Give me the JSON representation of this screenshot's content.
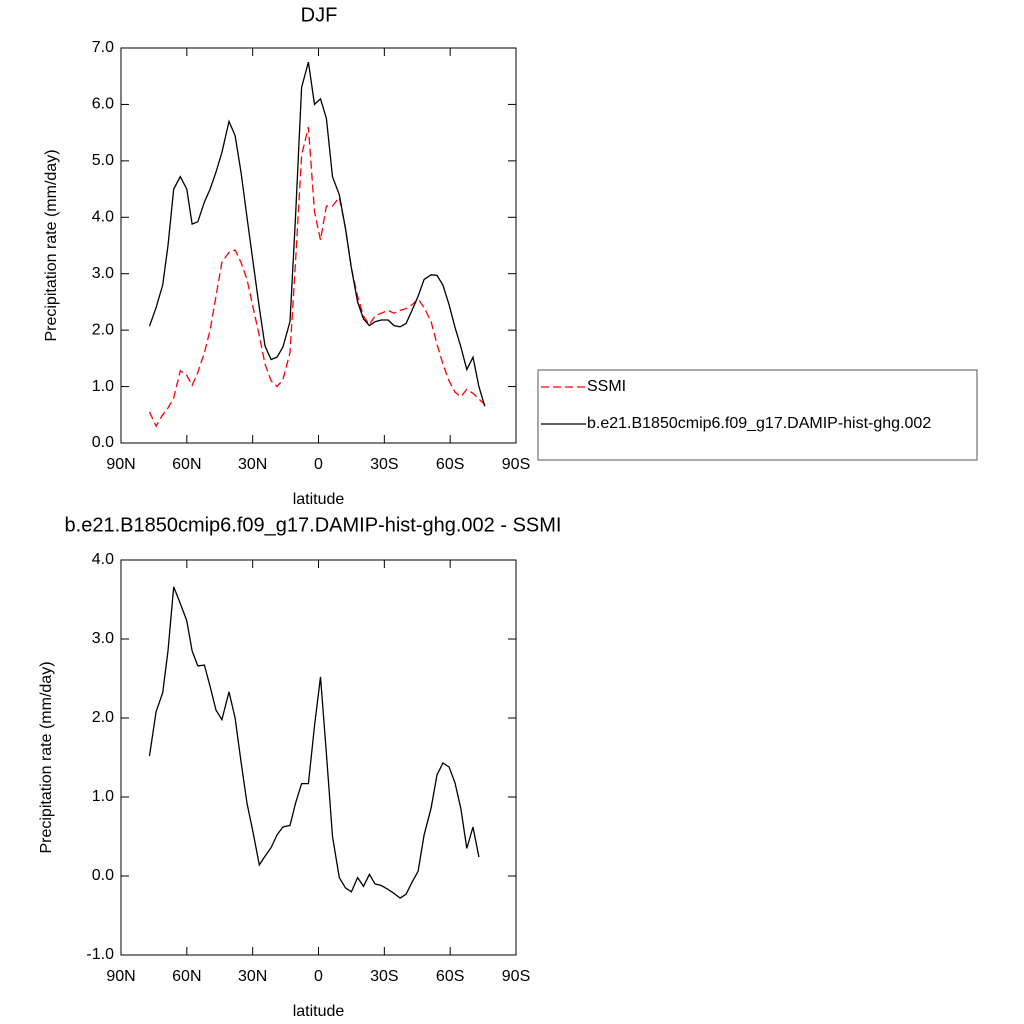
{
  "chart_data": [
    {
      "type": "line",
      "title": "DJF",
      "xlabel": "latitude",
      "ylabel": "Precipitation rate (mm/day)",
      "xlim": [
        90,
        -90
      ],
      "xticks": [
        {
          "value": 90,
          "label": "90N"
        },
        {
          "value": 60,
          "label": "60N"
        },
        {
          "value": 30,
          "label": "30N"
        },
        0,
        {
          "value": -30,
          "label": "30S"
        },
        {
          "value": -60,
          "label": "60S"
        },
        {
          "value": -90,
          "label": "90S"
        }
      ],
      "ylim": [
        0,
        7
      ],
      "yticks": [
        {
          "value": 0,
          "label": "0.0"
        },
        {
          "value": 1,
          "label": "1.0"
        },
        {
          "value": 2,
          "label": "2.0"
        },
        {
          "value": 3,
          "label": "3.0"
        },
        {
          "value": 4,
          "label": "4.0"
        },
        {
          "value": 5,
          "label": "5.0"
        },
        {
          "value": 6,
          "label": "6.0"
        },
        {
          "value": 7,
          "label": "7.0"
        }
      ],
      "legend": "right",
      "x": [
        77,
        74,
        71,
        68.6,
        66,
        63,
        60,
        57.6,
        55,
        52,
        49.4,
        46.7,
        44,
        40.8,
        38,
        35.3,
        32.6,
        29.8,
        27,
        24.4,
        21.6,
        18.9,
        16.2,
        13,
        10.5,
        7.7,
        4.6,
        1.8,
        -0.9,
        -3.6,
        -6.4,
        -9.5,
        -12.3,
        -15,
        -17.8,
        -20.5,
        -23.2,
        -25.8,
        -28.6,
        -31.7,
        -34.4,
        -37.2,
        -39.9,
        -42.6,
        -45.4,
        -48.1,
        -51.3,
        -54,
        -56.7,
        -59.5,
        -62.2,
        -64.9,
        -67.6,
        -70.4,
        -73.1,
        -75.8
      ],
      "series": [
        {
          "name": "SSMI",
          "color": "#ff0000",
          "line_style": "dashed",
          "values": [
            0.55,
            0.3,
            0.5,
            0.62,
            0.8,
            1.28,
            1.2,
            1.02,
            1.25,
            1.6,
            2.0,
            2.6,
            3.2,
            3.38,
            3.42,
            3.2,
            2.9,
            2.4,
            1.9,
            1.4,
            1.1,
            1.0,
            1.12,
            1.6,
            3.2,
            5.1,
            5.6,
            4.1,
            3.6,
            4.2,
            4.2,
            4.35,
            3.8,
            3.1,
            2.6,
            2.25,
            2.1,
            2.25,
            2.3,
            2.35,
            2.3,
            2.35,
            2.38,
            2.45,
            2.55,
            2.4,
            2.15,
            1.75,
            1.4,
            1.1,
            0.9,
            0.82,
            0.95,
            0.88,
            0.78,
            0.68
          ]
        },
        {
          "name": "b.e21.B1850cmip6.f09_g17.DAMIP-hist-ghg.002",
          "color": "#000000",
          "line_style": "solid",
          "values": [
            2.07,
            2.4,
            2.8,
            3.5,
            4.5,
            4.72,
            4.5,
            3.88,
            3.92,
            4.27,
            4.5,
            4.8,
            5.15,
            5.7,
            5.45,
            4.8,
            4.0,
            3.2,
            2.4,
            1.72,
            1.48,
            1.52,
            1.7,
            2.15,
            4.0,
            6.3,
            6.75,
            6.0,
            6.1,
            5.75,
            4.72,
            4.4,
            3.8,
            3.1,
            2.5,
            2.2,
            2.08,
            2.15,
            2.18,
            2.18,
            2.08,
            2.06,
            2.12,
            2.35,
            2.6,
            2.9,
            2.98,
            2.97,
            2.8,
            2.45,
            2.05,
            1.7,
            1.3,
            1.52,
            1.0,
            0.65
          ]
        }
      ]
    },
    {
      "type": "line",
      "title": "b.e21.B1850cmip6.f09_g17.DAMIP-hist-ghg.002 - SSMI",
      "xlabel": "latitude",
      "ylabel": "Precipitation rate (mm/day)",
      "xlim": [
        90,
        -90
      ],
      "xticks": [
        {
          "value": 90,
          "label": "90N"
        },
        {
          "value": 60,
          "label": "60N"
        },
        {
          "value": 30,
          "label": "30N"
        },
        0,
        {
          "value": -30,
          "label": "30S"
        },
        {
          "value": -60,
          "label": "60S"
        },
        {
          "value": -90,
          "label": "90S"
        }
      ],
      "ylim": [
        -1,
        4
      ],
      "yticks": [
        {
          "value": -1,
          "label": "-1.0"
        },
        {
          "value": 0,
          "label": "0.0"
        },
        {
          "value": 1,
          "label": "1.0"
        },
        {
          "value": 2,
          "label": "2.0"
        },
        {
          "value": 3,
          "label": "3.0"
        },
        {
          "value": 4,
          "label": "4.0"
        }
      ],
      "x": [
        77,
        74,
        71,
        68.6,
        66,
        63,
        60,
        57.6,
        55,
        52,
        49.4,
        46.7,
        44,
        40.8,
        38,
        35.3,
        32.6,
        29.8,
        27,
        24.4,
        21.6,
        18.9,
        16.2,
        13,
        10.5,
        7.7,
        4.6,
        1.8,
        -0.9,
        -3.6,
        -6.4,
        -9.5,
        -12.3,
        -15,
        -17.8,
        -20.5,
        -23.2,
        -25.8,
        -28.6,
        -31.7,
        -34.4,
        -37.2,
        -39.9,
        -42.6,
        -45.4,
        -48.1,
        -51.3,
        -54,
        -56.7,
        -59.5,
        -62.2,
        -64.9,
        -67.6,
        -70.4,
        -73.1
      ],
      "series": [
        {
          "color": "#000000",
          "line_style": "solid",
          "values": [
            1.52,
            2.08,
            2.32,
            2.85,
            3.66,
            3.45,
            3.23,
            2.85,
            2.66,
            2.67,
            2.4,
            2.1,
            1.98,
            2.33,
            2.0,
            1.45,
            0.92,
            0.55,
            0.14,
            0.25,
            0.36,
            0.52,
            0.62,
            0.64,
            0.92,
            1.17,
            1.17,
            1.9,
            2.52,
            1.55,
            0.5,
            -0.02,
            -0.15,
            -0.2,
            -0.02,
            -0.13,
            0.02,
            -0.1,
            -0.12,
            -0.17,
            -0.22,
            -0.28,
            -0.23,
            -0.08,
            0.06,
            0.52,
            0.86,
            1.28,
            1.43,
            1.38,
            1.18,
            0.85,
            0.35,
            0.62,
            0.24
          ]
        }
      ]
    }
  ]
}
